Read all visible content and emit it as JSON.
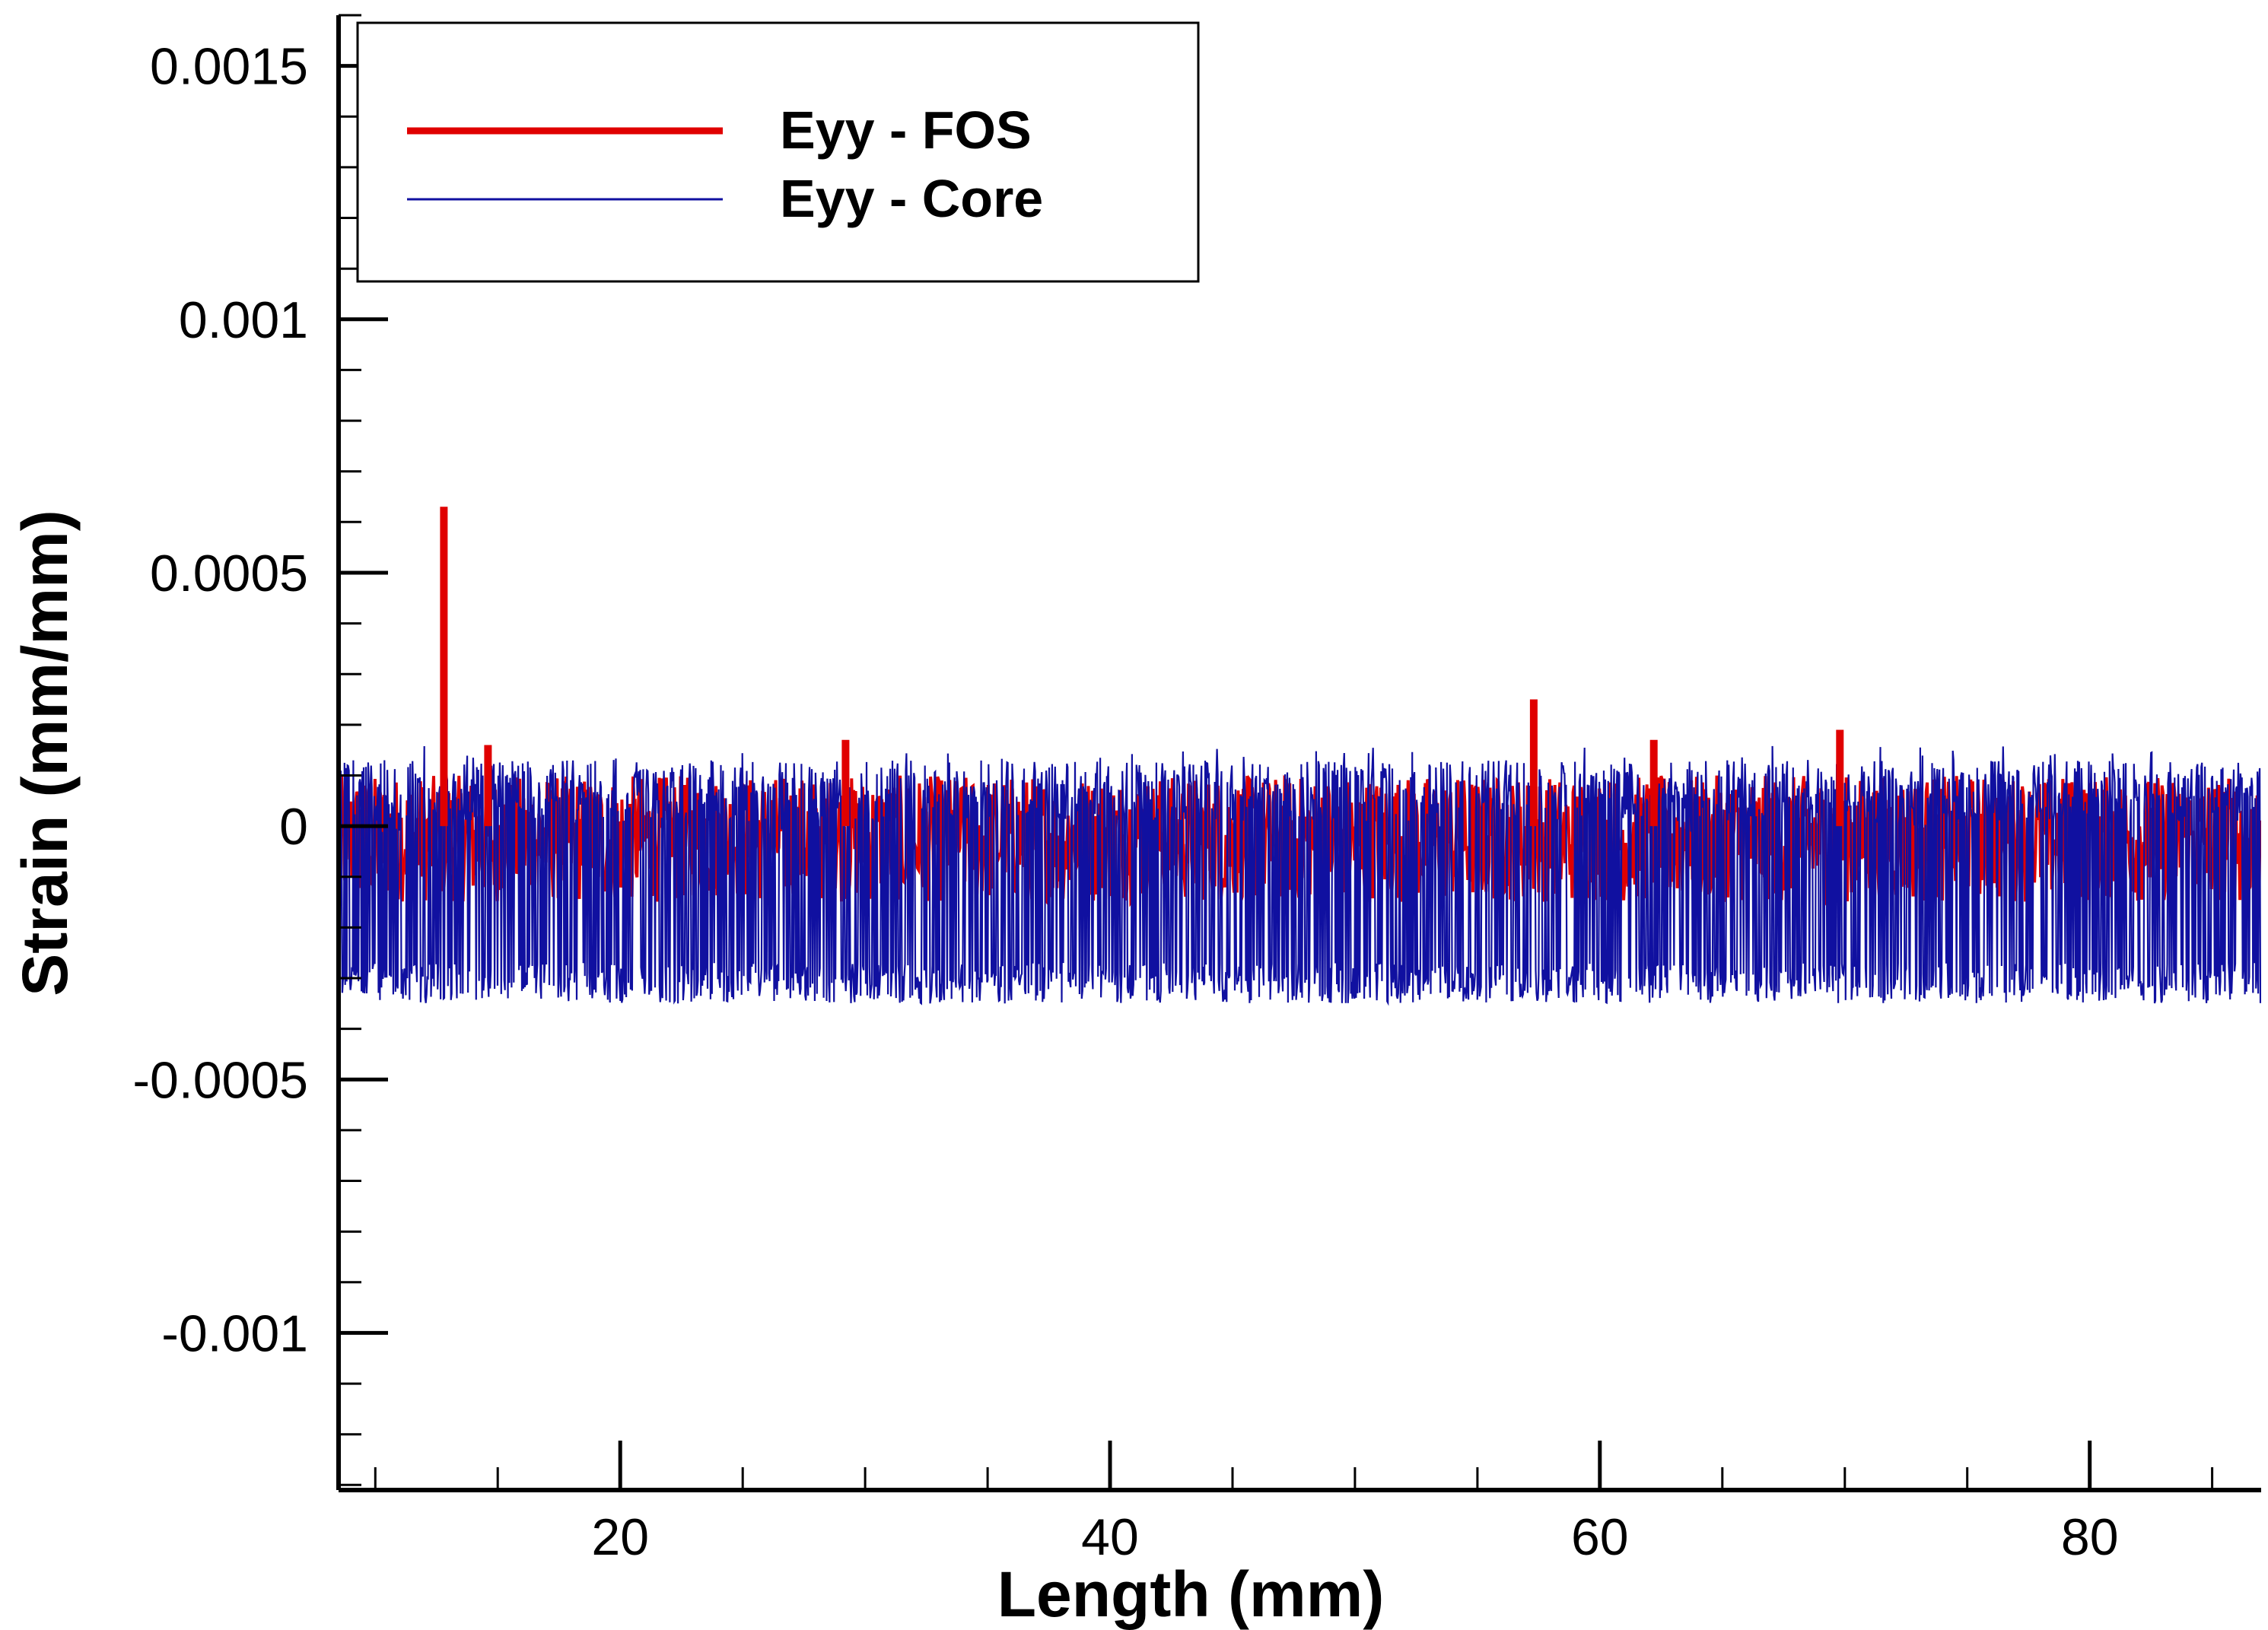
{
  "chart_data": {
    "type": "line",
    "xlabel": "Length (mm)",
    "ylabel": "Strain (mm/mm)",
    "xlim": [
      8.5,
      87
    ],
    "ylim": [
      -0.00131,
      0.0016
    ],
    "x_ticks": [
      20,
      40,
      60,
      80
    ],
    "x_tick_labels": [
      "20",
      "40",
      "60",
      "80"
    ],
    "x_minor_step": 5,
    "y_ticks": [
      0.0015,
      0.001,
      0.0005,
      0,
      -0.0005,
      -0.001
    ],
    "y_tick_labels": [
      "0.0015",
      "0.001",
      "0.0005",
      "0",
      "-0.0005",
      "-0.001"
    ],
    "y_minor_step": 0.0001,
    "grid": false,
    "legend_position": "top-left",
    "series": [
      {
        "name": "Eyy - FOS",
        "color": "#e00000",
        "typical_range": [
          -0.00015,
          0.0001
        ],
        "peaks": [
          {
            "x": 12.8,
            "y": 0.00063
          },
          {
            "x": 14.6,
            "y": 0.00016
          },
          {
            "x": 29.2,
            "y": 0.00017
          },
          {
            "x": 57.3,
            "y": 0.00025
          },
          {
            "x": 62.2,
            "y": 0.00017
          },
          {
            "x": 69.8,
            "y": 0.00019
          }
        ]
      },
      {
        "name": "Eyy - Core",
        "color": "#1010a0",
        "typical_range": [
          -0.00035,
          0.00013
        ]
      }
    ]
  }
}
